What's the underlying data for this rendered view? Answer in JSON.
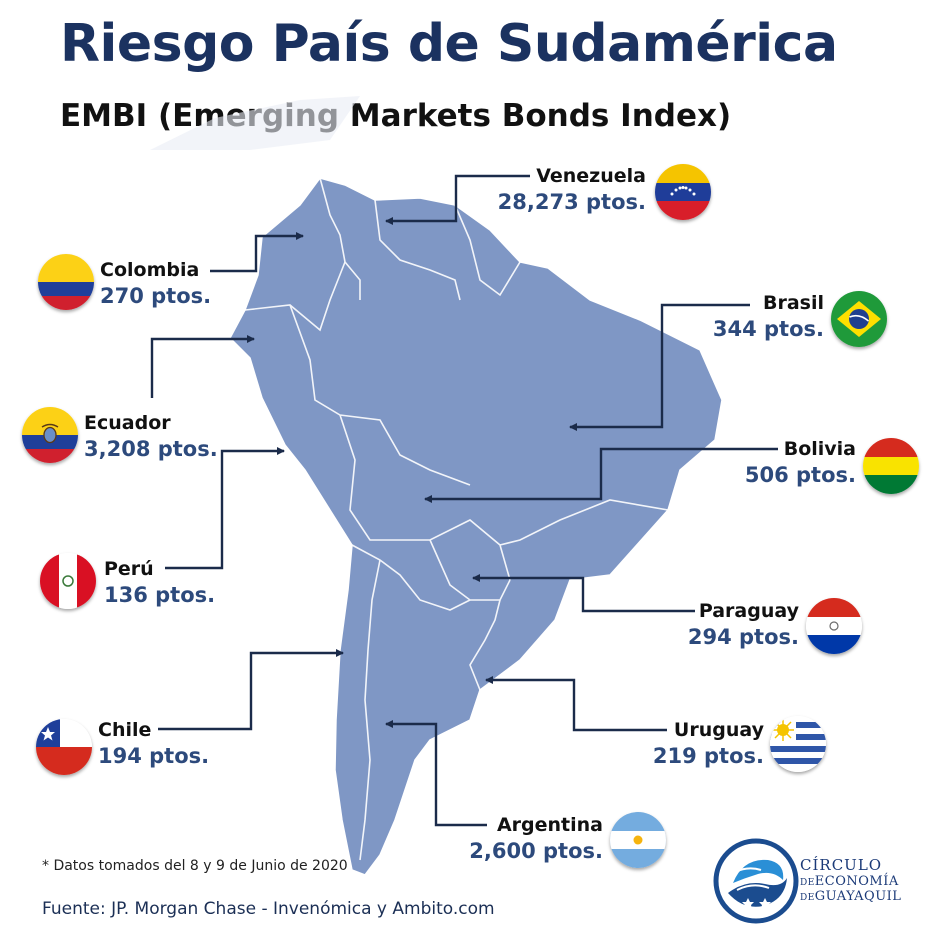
{
  "header": {
    "title": "Riesgo País de Sudamérica",
    "subtitle": "EMBI (Emerging Markets Bonds Index)"
  },
  "countries": {
    "venezuela": {
      "name": "Venezuela",
      "value": "28,273 ptos."
    },
    "colombia": {
      "name": "Colombia",
      "value": "270 ptos."
    },
    "brasil": {
      "name": "Brasil",
      "value": "344 ptos."
    },
    "ecuador": {
      "name": "Ecuador",
      "value": "3,208 ptos."
    },
    "bolivia": {
      "name": "Bolivia",
      "value": "506 ptos."
    },
    "peru": {
      "name": "Perú",
      "value": "136 ptos."
    },
    "paraguay": {
      "name": "Paraguay",
      "value": "294 ptos."
    },
    "chile": {
      "name": "Chile",
      "value": "194 ptos."
    },
    "uruguay": {
      "name": "Uruguay",
      "value": "219 ptos."
    },
    "argentina": {
      "name": "Argentina",
      "value": "2,600 ptos."
    }
  },
  "footer": {
    "note": "* Datos tomados del 8 y 9 de Junio de 2020",
    "source": "Fuente: JP. Morgan Chase - Invenómica y Ambito.com"
  },
  "logo": {
    "line1": "CÍRCULO",
    "line2_prefix": "DE",
    "line2_main": "ECONOMÍA",
    "line3_prefix": "DE",
    "line3_main": "GUAYAQUIL"
  },
  "colors": {
    "title": "#1b3260",
    "value_text": "#2d4a7c",
    "map_fill": "#7f97c5",
    "map_border": "#ffffff",
    "connector": "#1b2b4a",
    "logo": "#1b3a78"
  }
}
